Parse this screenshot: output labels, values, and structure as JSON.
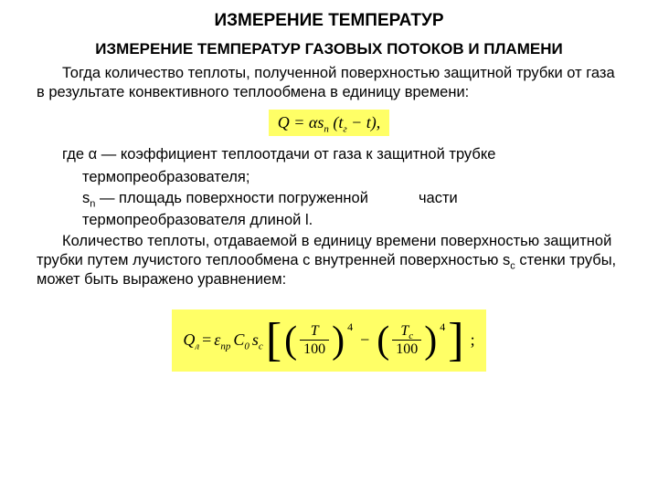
{
  "title": "ИЗМЕРЕНИЕ ТЕМПЕРАТУР",
  "subtitle": "ИЗМЕРЕНИЕ ТЕМПЕРАТУР ГАЗОВЫХ ПОТОКОВ И ПЛАМЕНИ",
  "para1": "Тогда количество теплоты, полученной поверхностью защитной трубки от газа в результате конвективного теплообмена в единицу времени:",
  "formula1_html": "Q = αs<sub>n</sub> (t<sub>г</sub> − t),",
  "where_label": "где α — коэффициент теплоотдачи от газа к защитной трубке",
  "def_line2": "термопреобразователя;",
  "def_sn": "s",
  "def_sn_sub": "n",
  "def_sn_text": " — площадь поверхности погруженной",
  "def_sn_text2": "части",
  "def_line4": "термопреобразователя длиной l.",
  "para2": "Количество теплоты, отдаваемой в единицу времени поверхностью защитной трубки путем лучистого теплообмена с внутренней поверхностью s",
  "para2_sub": "c",
  "para2_tail": " стенки трубы, может быть выражено уравнением:",
  "f2": {
    "Q": "Q",
    "Qsub": "л",
    "eq": " = ",
    "eps": "ε",
    "eps_sub": "пр",
    "C": "C",
    "C_sub": "0",
    "s": "s",
    "s_sub": "с",
    "T": "T",
    "hundred": "100",
    "Tc": "T",
    "Tc_sub": "c",
    "pow": "4",
    "semi": ";"
  },
  "colors": {
    "highlight": "#ffff66",
    "text": "#000000",
    "bg": "#ffffff"
  }
}
